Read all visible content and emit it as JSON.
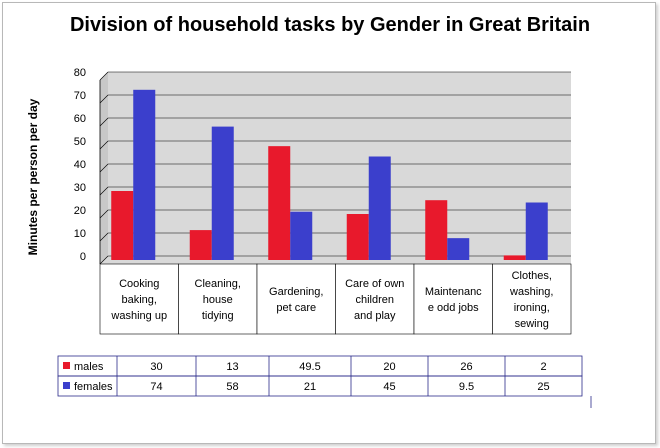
{
  "chart_data": {
    "type": "bar",
    "title": "Division of household tasks by Gender in Great Britain",
    "ylabel": "Minutes per person per day",
    "ylim": [
      0,
      80
    ],
    "yticks": [
      0,
      10,
      20,
      30,
      40,
      50,
      60,
      70,
      80
    ],
    "grid": true,
    "categories": [
      [
        "Cooking",
        "baking,",
        "washing up"
      ],
      [
        "Cleaning,",
        "house",
        "tidying"
      ],
      [
        "Gardening,",
        "pet care"
      ],
      [
        "Care of own",
        "children",
        "and play"
      ],
      [
        "Maintenanc",
        "e odd jobs"
      ],
      [
        "Clothes,",
        "washing,",
        "ironing,",
        "sewing"
      ]
    ],
    "series": [
      {
        "name": "males",
        "color": "#e8192c",
        "values": [
          30,
          13,
          49.5,
          20,
          26,
          2
        ]
      },
      {
        "name": "females",
        "color": "#3b3fcc",
        "values": [
          74,
          58,
          21,
          45,
          9.5,
          25
        ]
      }
    ],
    "legend": "data table below plot"
  }
}
